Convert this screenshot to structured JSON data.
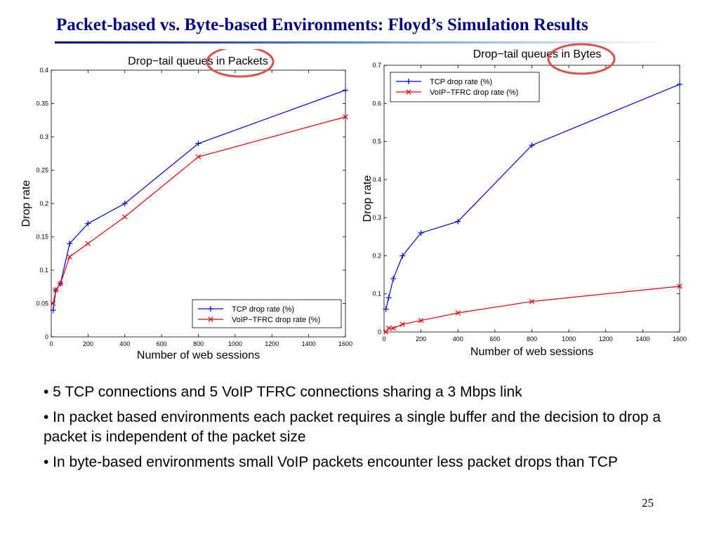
{
  "slide": {
    "title": "Packet-based vs. Byte-based Environments: Floyd’s Simulation Results",
    "page_number": "25",
    "bullets": [
      "• 5 TCP connections and 5 VoIP TFRC connections sharing a 3 Mbps link",
      "• In packet based environments each packet requires a single buffer and the decision to drop a packet is independent of the packet size",
      "• In byte-based environments small VoIP packets encounter less packet drops than TCP"
    ]
  },
  "colors": {
    "title": "#000080",
    "tcp_series": "#0000ee",
    "voip_series": "#ee0000",
    "highlight_circle": "#d9534f"
  },
  "chart_data": [
    {
      "type": "line",
      "title": "Drop−tail queues in Packets",
      "xlabel": "Number of web sessions",
      "ylabel": "Drop rate",
      "xlim": [
        0,
        1600
      ],
      "ylim": [
        0,
        0.4
      ],
      "xticks": [
        0,
        200,
        400,
        600,
        800,
        1000,
        1200,
        1400,
        1600
      ],
      "xtick_labels": [
        "0",
        "200",
        "400",
        "600",
        "800",
        "1000",
        "1200",
        "1400",
        "1600"
      ],
      "yticks": [
        0,
        0.05,
        0.1,
        0.15,
        0.2,
        0.25,
        0.3,
        0.35,
        0.4
      ],
      "ytick_labels": [
        "0",
        "0.05",
        "0.1",
        "0.15",
        "0.2",
        "0.25",
        "0.3",
        "0.35",
        "0.4"
      ],
      "legend_position": "bottom-right",
      "series": [
        {
          "name": "TCP drop rate (%)",
          "marker": "+",
          "color": "#0000ee",
          "x": [
            10,
            25,
            50,
            100,
            200,
            400,
            800,
            1600
          ],
          "y": [
            0.04,
            0.07,
            0.08,
            0.14,
            0.17,
            0.2,
            0.29,
            0.37
          ]
        },
        {
          "name": "VoIP−TFRC drop rate (%)",
          "marker": "x",
          "color": "#ee0000",
          "x": [
            10,
            25,
            50,
            100,
            200,
            400,
            800,
            1600
          ],
          "y": [
            0.05,
            0.07,
            0.08,
            0.12,
            0.14,
            0.18,
            0.27,
            0.33
          ]
        }
      ]
    },
    {
      "type": "line",
      "title": "Drop−tail queues in Bytes",
      "xlabel": "Number of web sessions",
      "ylabel": "Drop rate",
      "xlim": [
        0,
        1600
      ],
      "ylim": [
        0,
        0.7
      ],
      "xticks": [
        0,
        200,
        400,
        600,
        800,
        1000,
        1200,
        1400,
        1600
      ],
      "xtick_labels": [
        "0",
        "200",
        "400",
        "600",
        "800",
        "1000",
        "1200",
        "1400",
        "1600"
      ],
      "yticks": [
        0,
        0.1,
        0.2,
        0.3,
        0.4,
        0.5,
        0.6,
        0.7
      ],
      "ytick_labels": [
        "0",
        "0.1",
        "0.2",
        "0.3",
        "0.4",
        "0.5",
        "0.6",
        "0.7"
      ],
      "legend_position": "top-left",
      "series": [
        {
          "name": "TCP drop rate (%)",
          "marker": "+",
          "color": "#0000ee",
          "x": [
            10,
            25,
            50,
            100,
            200,
            400,
            800,
            1600
          ],
          "y": [
            0.06,
            0.09,
            0.14,
            0.2,
            0.26,
            0.29,
            0.49,
            0.65
          ]
        },
        {
          "name": "VoIP−TFRC drop rate (%)",
          "marker": "x",
          "color": "#ee0000",
          "x": [
            10,
            25,
            50,
            100,
            200,
            400,
            800,
            1600
          ],
          "y": [
            0.0,
            0.01,
            0.01,
            0.02,
            0.03,
            0.05,
            0.08,
            0.12
          ]
        }
      ]
    }
  ]
}
